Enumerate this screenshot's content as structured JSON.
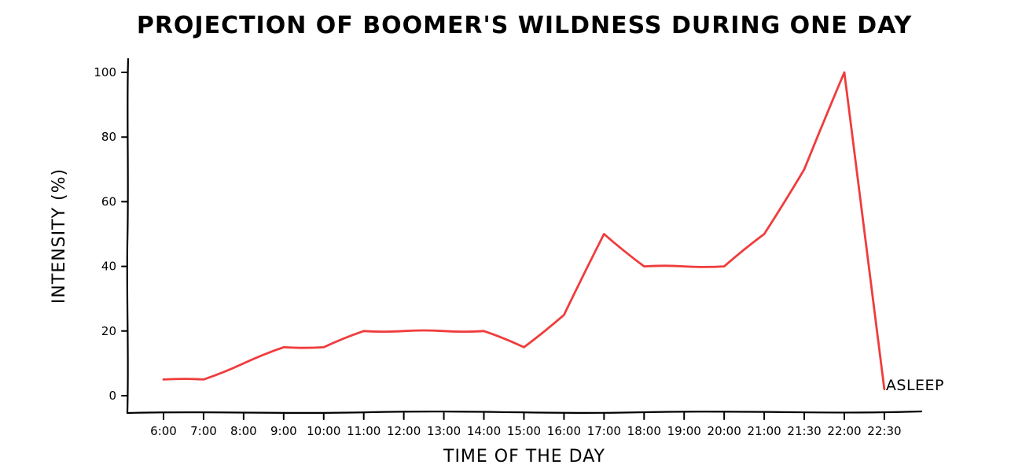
{
  "chart_data": {
    "type": "line",
    "title": "PROJECTION OF BOOMER'S WILDNESS DURING ONE DAY",
    "xlabel": "TIME OF THE DAY",
    "ylabel": "INTENSITY (%)",
    "categories": [
      "6:00",
      "7:00",
      "8:00",
      "9:00",
      "10:00",
      "11:00",
      "12:00",
      "13:00",
      "14:00",
      "15:00",
      "16:00",
      "17:00",
      "18:00",
      "19:00",
      "20:00",
      "21:00",
      "21:30",
      "22:00",
      "22:30"
    ],
    "y_ticks": [
      "0",
      "20",
      "40",
      "60",
      "80",
      "100"
    ],
    "ylim": [
      0,
      100
    ],
    "grid": false,
    "legend": "none",
    "series": [
      {
        "color": "#f03c3c",
        "values": [
          5,
          5,
          10,
          15,
          15,
          20,
          20,
          20,
          20,
          15,
          25,
          50,
          40,
          40,
          40,
          50,
          70,
          100,
          2
        ]
      }
    ],
    "annotations": [
      {
        "text": "ASLEEP",
        "category": "22:30",
        "y": 2
      }
    ]
  }
}
